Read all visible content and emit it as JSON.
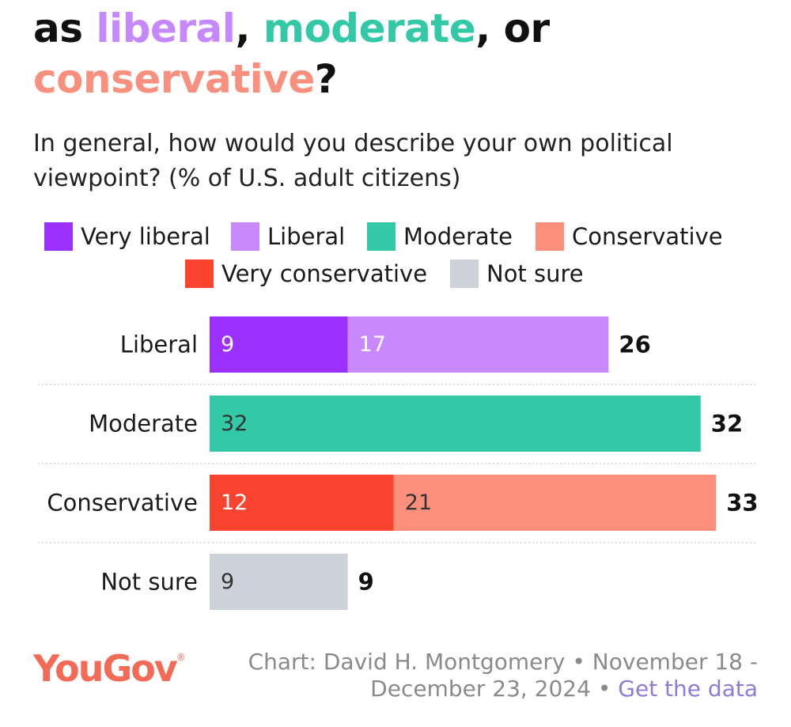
{
  "title": {
    "prefix": "as ",
    "word_liberal": "liberal",
    "sep1": ", ",
    "word_moderate": "moderate",
    "sep2": ", or",
    "word_conservative": "conservative",
    "suffix": "?"
  },
  "subtitle": "In general, how would you describe your own political viewpoint? (% of U.S. adult citizens)",
  "colors": {
    "very_liberal": "#9b30ff",
    "liberal": "#c889ff",
    "moderate": "#33c9a6",
    "conservative": "#fb8f7c",
    "very_conservative": "#fb4430",
    "not_sure": "#cdd2db",
    "title_liberal": "#c588ff",
    "title_moderate": "#33c9a6",
    "title_conservative": "#f9907e"
  },
  "legend": [
    {
      "label": "Very liberal",
      "color": "#9b30ff"
    },
    {
      "label": "Liberal",
      "color": "#c889ff"
    },
    {
      "label": "Moderate",
      "color": "#33c9a6"
    },
    {
      "label": "Conservative",
      "color": "#fb8f7c"
    },
    {
      "label": "Very conservative",
      "color": "#fb4430"
    },
    {
      "label": "Not sure",
      "color": "#cdd2db"
    }
  ],
  "chart_data": {
    "type": "bar",
    "orientation": "horizontal",
    "stacked": true,
    "title": "as liberal, moderate, or conservative?",
    "subtitle": "In general, how would you describe your own political viewpoint? (% of U.S. adult citizens)",
    "categories": [
      "Liberal",
      "Moderate",
      "Conservative",
      "Not sure"
    ],
    "rows": [
      {
        "category": "Liberal",
        "total": "26",
        "segments": [
          {
            "series": "Very liberal",
            "value": 9,
            "label": "9",
            "color": "#9b30ff"
          },
          {
            "series": "Liberal",
            "value": 17,
            "label": "17",
            "color": "#c889ff"
          }
        ]
      },
      {
        "category": "Moderate",
        "total": "32",
        "segments": [
          {
            "series": "Moderate",
            "value": 32,
            "label": "32",
            "color": "#33c9a6"
          }
        ]
      },
      {
        "category": "Conservative",
        "total": "33",
        "segments": [
          {
            "series": "Very conservative",
            "value": 12,
            "label": "12",
            "color": "#fb4430"
          },
          {
            "series": "Conservative",
            "value": 21,
            "label": "21",
            "color": "#fb8f7c"
          }
        ]
      },
      {
        "category": "Not sure",
        "total": "9",
        "segments": [
          {
            "series": "Not sure",
            "value": 9,
            "label": "9",
            "color": "#cdd2db"
          }
        ]
      }
    ],
    "xlim": [
      0,
      33
    ],
    "grid": false,
    "legend_position": "top"
  },
  "footer": {
    "logo": "YouGov",
    "logo_mark": "®",
    "credit_line1": "Chart: David H. Montgomery • November 18 -",
    "credit_line2": "December 23, 2024 • ",
    "data_link": "Get the data"
  }
}
